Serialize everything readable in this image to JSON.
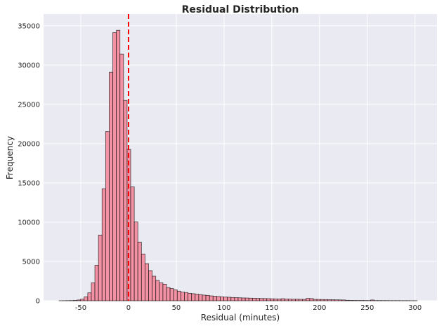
{
  "chart_data": {
    "type": "bar",
    "title": "Residual Distribution",
    "xlabel": "Residual (minutes)",
    "ylabel": "Frequency",
    "xlim": [
      -89,
      323
    ],
    "ylim": [
      0,
      36500
    ],
    "xticks": [
      -50,
      0,
      50,
      100,
      150,
      200,
      250,
      300
    ],
    "yticks": [
      0,
      5000,
      10000,
      15000,
      20000,
      25000,
      30000,
      35000
    ],
    "grid": true,
    "bin_start": -72.75,
    "bin_width": 3.75,
    "values": [
      5,
      10,
      20,
      30,
      50,
      100,
      210,
      500,
      1010,
      2290,
      4500,
      8360,
      14260,
      21540,
      29080,
      34130,
      34430,
      31400,
      25500,
      19260,
      14500,
      10030,
      7470,
      5950,
      4730,
      3840,
      3125,
      2590,
      2290,
      2110,
      1700,
      1550,
      1400,
      1220,
      1100,
      1050,
      950,
      900,
      850,
      780,
      720,
      680,
      620,
      580,
      540,
      500,
      470,
      450,
      420,
      400,
      380,
      360,
      350,
      330,
      320,
      300,
      290,
      280,
      270,
      250,
      240,
      230,
      260,
      220,
      210,
      200,
      200,
      190,
      180,
      300,
      280,
      180,
      170,
      160,
      150,
      140,
      130,
      120,
      110,
      100,
      60,
      50,
      45,
      40,
      40,
      35,
      30,
      100,
      30,
      30,
      25,
      25,
      20,
      20,
      20,
      15,
      15,
      15,
      10,
      10
    ],
    "reference_line": {
      "x": 0,
      "style": "dashed",
      "color": "#ff0000"
    },
    "colors": {
      "bar": "#f4889b",
      "edge": "#000000",
      "background": "#eaeaf2",
      "grid": "#ffffff"
    }
  }
}
